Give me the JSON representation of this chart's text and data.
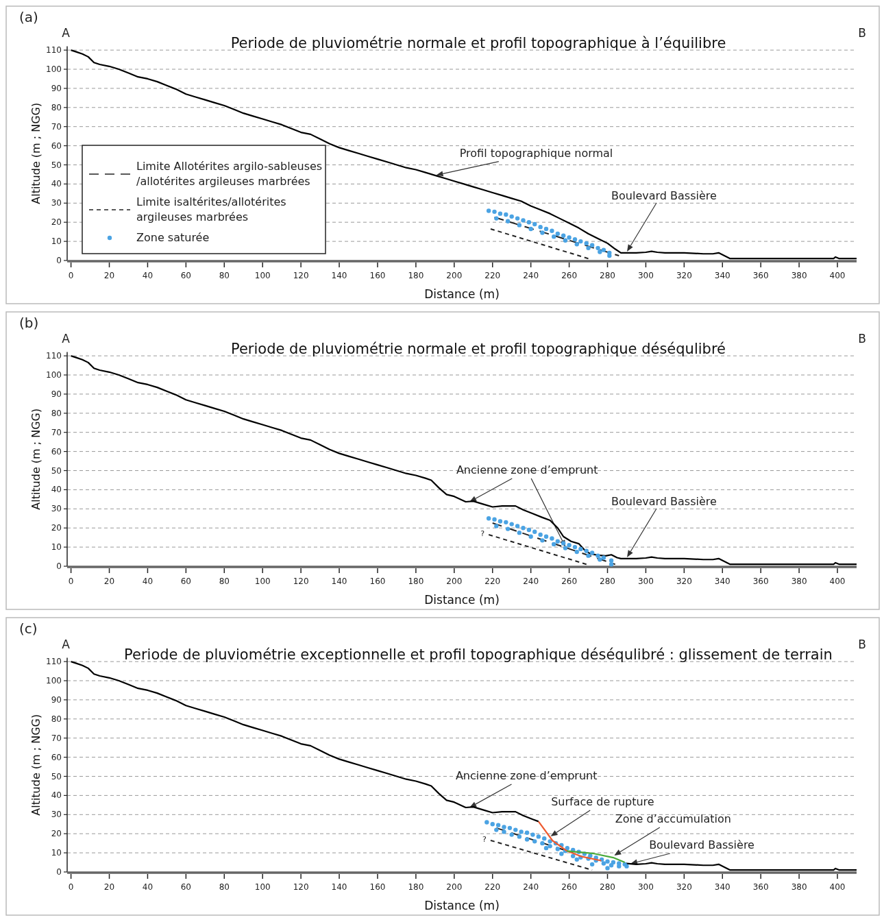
{
  "chart_data": [
    {
      "type": "line",
      "title": "Periode de pluviométrie normale et profil topographique à l’équilibre",
      "xlabel": "Distance (m)",
      "ylabel": "Altitude (m ; NGG)",
      "xlim": [
        -2,
        410
      ],
      "ylim": [
        0,
        112
      ],
      "xticks": [
        0,
        20,
        40,
        60,
        80,
        100,
        120,
        140,
        160,
        180,
        200,
        220,
        240,
        260,
        280,
        300,
        320,
        340,
        360,
        380,
        400
      ],
      "yticks": [
        0,
        10,
        20,
        30,
        40,
        50,
        60,
        70,
        80,
        90,
        100,
        110
      ],
      "grid": "y",
      "legend": "bottom left",
      "annotations": [
        "(a)",
        "A",
        "B",
        {
          "text": "Profil topographique normal",
          "x": 190.6,
          "y": 44.6
        },
        "Boulevard Bassière"
      ],
      "series": [
        {
          "color": "#000000",
          "line_style": "solid",
          "x": [
            0,
            3,
            6,
            9,
            12,
            15,
            20,
            25,
            30,
            35,
            40,
            45,
            50,
            55,
            60,
            65,
            70,
            75,
            80,
            85,
            90,
            95,
            100,
            105,
            110,
            115,
            120,
            125,
            130,
            135,
            140,
            145,
            150,
            155,
            160,
            165,
            170,
            175,
            180,
            185,
            190,
            195,
            200,
            205,
            210,
            215,
            220,
            225,
            230,
            235,
            240,
            245,
            250,
            255,
            260,
            265,
            270,
            275,
            280,
            284,
            287,
            295,
            300,
            303,
            306,
            310,
            320,
            330,
            335,
            338,
            341,
            344,
            360,
            380,
            398,
            399,
            401,
            410
          ],
          "values": [
            110,
            109,
            108,
            106.5,
            103.5,
            102.5,
            101.5,
            100,
            98,
            96,
            95,
            93.5,
            91.5,
            89.5,
            87,
            85.5,
            84,
            82.5,
            81,
            79,
            77,
            75.5,
            74,
            72.5,
            71,
            69,
            67,
            66,
            63.5,
            61,
            59,
            57.5,
            56,
            54.5,
            53,
            51.5,
            50,
            48.5,
            47.5,
            46,
            44.5,
            43,
            41.5,
            40,
            38.5,
            37,
            35.5,
            34,
            32.5,
            31,
            28.5,
            26.5,
            24.5,
            22,
            19.5,
            17,
            14,
            11.5,
            9,
            6,
            4,
            4,
            4.3,
            4.8,
            4.3,
            4,
            4,
            3.5,
            3.5,
            4,
            2.5,
            1,
            1,
            1,
            1,
            1.8,
            1,
            1
          ]
        },
        {
          "name": "Limite Allotérites argilo-sableuses\n/allotérites argileuses marbrées",
          "color": "#222222",
          "line_style": "dashed",
          "x": [
            221,
            286
          ],
          "values": [
            22.6,
            2.5
          ]
        },
        {
          "name": "Limite isaltérites/allotérites\nargileuses marbrées",
          "color": "#222222",
          "line_style": "dashed",
          "x": [
            219,
            270
          ],
          "values": [
            16.5,
            1
          ]
        },
        {
          "type": "scatter",
          "name": "Zone saturée",
          "color": "#4ba3e3",
          "marker": "circle",
          "x": [
            218,
            221,
            224,
            227,
            230,
            233,
            236,
            239,
            242,
            245,
            248,
            251,
            254,
            257,
            260,
            263,
            266,
            269,
            272,
            275,
            278,
            281,
            222,
            228,
            234,
            240,
            246,
            252,
            258,
            264,
            270,
            276,
            281
          ],
          "values": [
            26,
            25.5,
            24.5,
            24,
            23,
            22,
            21,
            20,
            19,
            17.5,
            16.5,
            15.5,
            14,
            13,
            12,
            11,
            10,
            9,
            8,
            6.5,
            5.5,
            4,
            22,
            20.5,
            18.5,
            16.5,
            14.5,
            12.5,
            10.5,
            8.5,
            6.5,
            4.5,
            2.5
          ]
        }
      ]
    },
    {
      "type": "line",
      "title": "Periode de pluviométrie normale et profil topographique déséqulibré",
      "xlabel": "Distance (m)",
      "ylabel": "Altitude (m ; NGG)",
      "xlim": [
        -2,
        410
      ],
      "ylim": [
        0,
        112
      ],
      "xticks": [
        0,
        20,
        40,
        60,
        80,
        100,
        120,
        140,
        160,
        180,
        200,
        220,
        240,
        260,
        280,
        300,
        320,
        340,
        360,
        380,
        400
      ],
      "yticks": [
        0,
        10,
        20,
        30,
        40,
        50,
        60,
        70,
        80,
        90,
        100,
        110
      ],
      "grid": "y",
      "annotations": [
        "(b)",
        "A",
        "B",
        {
          "text": "Ancienne zone d’emprunt",
          "x": 208,
          "y": 33.7
        },
        "Boulevard Bassière",
        "?"
      ],
      "series": [
        {
          "color": "#000000",
          "line_style": "solid",
          "x": [
            0,
            3,
            6,
            9,
            12,
            15,
            20,
            25,
            30,
            35,
            40,
            45,
            50,
            55,
            60,
            65,
            70,
            75,
            80,
            85,
            90,
            95,
            100,
            105,
            110,
            115,
            120,
            125,
            130,
            135,
            140,
            145,
            150,
            155,
            160,
            165,
            170,
            175,
            180,
            185,
            188,
            192,
            196,
            200,
            206,
            210,
            215,
            220,
            225,
            232,
            236,
            241,
            246,
            250,
            254,
            257,
            261,
            265,
            268,
            271,
            275,
            279,
            282,
            285,
            287,
            295,
            300,
            303,
            306,
            310,
            320,
            330,
            335,
            338,
            341,
            344,
            360,
            380,
            398,
            399,
            401,
            410
          ],
          "values": [
            110,
            109,
            108,
            106.5,
            103.5,
            102.5,
            101.5,
            100,
            98,
            96,
            95,
            93.5,
            91.5,
            89.5,
            87,
            85.5,
            84,
            82.5,
            81,
            79,
            77,
            75.5,
            74,
            72.5,
            71,
            69,
            67,
            66,
            63.5,
            61,
            59,
            57.5,
            56,
            54.5,
            53,
            51.5,
            50,
            48.5,
            47.5,
            46,
            45,
            41,
            37.5,
            36.5,
            33.7,
            34,
            32.5,
            31,
            31.5,
            31.5,
            29.5,
            27.5,
            25.5,
            24,
            20,
            15.5,
            13,
            11.8,
            8.5,
            6.5,
            5.8,
            5.4,
            6,
            4.5,
            4,
            4,
            4.3,
            4.8,
            4.3,
            4,
            4,
            3.5,
            3.5,
            4,
            2.5,
            1,
            1,
            1,
            1,
            1.8,
            1,
            1
          ]
        },
        {
          "color": "#222222",
          "line_style": "dashed",
          "x": [
            220,
            284
          ],
          "values": [
            22.6,
            1
          ]
        },
        {
          "color": "#222222",
          "line_style": "dashed",
          "x": [
            218,
            269
          ],
          "values": [
            16.5,
            1
          ]
        },
        {
          "type": "scatter",
          "color": "#4ba3e3",
          "marker": "circle",
          "x": [
            218,
            221,
            224,
            227,
            230,
            233,
            236,
            239,
            242,
            245,
            248,
            251,
            254,
            257,
            260,
            263,
            266,
            269,
            272,
            275,
            278,
            282,
            222,
            228,
            234,
            240,
            246,
            252,
            258,
            264,
            270,
            276,
            282
          ],
          "values": [
            25,
            24.5,
            23.5,
            23,
            22,
            21,
            20,
            19,
            18,
            16.5,
            15.5,
            14.5,
            13,
            12,
            11,
            10,
            9,
            8,
            7,
            5.5,
            4.5,
            3,
            21,
            19.5,
            17.5,
            15.5,
            13.5,
            11.5,
            9.5,
            7.5,
            5.5,
            3.5,
            1
          ]
        }
      ]
    },
    {
      "type": "line",
      "title": "Periode de pluviométrie exceptionnelle et profil topographique déséqulibré : glissement de terrain",
      "xlabel": "Distance (m)",
      "ylabel": "Altitude (m ; NGG)",
      "xlim": [
        -2,
        410
      ],
      "ylim": [
        0,
        112
      ],
      "xticks": [
        0,
        20,
        40,
        60,
        80,
        100,
        120,
        140,
        160,
        180,
        200,
        220,
        240,
        260,
        280,
        300,
        320,
        340,
        360,
        380,
        400
      ],
      "yticks": [
        0,
        10,
        20,
        30,
        40,
        50,
        60,
        70,
        80,
        90,
        100,
        110
      ],
      "grid": "y",
      "annotations": [
        "(c)",
        "A",
        "B",
        {
          "text": "Ancienne zone d’emprunt",
          "x": 208,
          "y": 33.7
        },
        {
          "text": "Surface de rupture",
          "x": 250.3,
          "y": 18.6
        },
        {
          "text": "Zone d’accumulation",
          "x": 283.5,
          "y": 8.6
        },
        {
          "text": "Boulevard Bassière",
          "x": 292,
          "y": 4.3
        },
        "?"
      ],
      "series": [
        {
          "color": "#000000",
          "line_style": "solid",
          "x": [
            0,
            3,
            6,
            9,
            12,
            15,
            20,
            25,
            30,
            35,
            40,
            45,
            50,
            55,
            60,
            65,
            70,
            75,
            80,
            85,
            90,
            95,
            100,
            105,
            110,
            115,
            120,
            125,
            130,
            135,
            140,
            145,
            150,
            155,
            160,
            165,
            170,
            175,
            180,
            185,
            188,
            192,
            196,
            200,
            206,
            210,
            215,
            220,
            225,
            232,
            236,
            241,
            244
          ],
          "values": [
            110,
            109,
            108,
            106.5,
            103.5,
            102.5,
            101.5,
            100,
            98,
            96,
            95,
            93.5,
            91.5,
            89.5,
            87,
            85.5,
            84,
            82.5,
            81,
            79,
            77,
            75.5,
            74,
            72.5,
            71,
            69,
            67,
            66,
            63.5,
            61,
            59,
            57.5,
            56,
            54.5,
            53,
            51.5,
            50,
            48.5,
            47.5,
            46,
            45,
            41,
            37.5,
            36.5,
            33.7,
            34,
            32.5,
            31,
            31.5,
            31.5,
            29.5,
            27.5,
            26.4
          ]
        },
        {
          "color": "#000000",
          "line_style": "solid",
          "x": [
            289,
            295,
            300,
            303,
            306,
            310,
            320,
            330,
            335,
            338,
            341,
            344,
            360,
            380,
            398,
            399,
            401,
            410
          ],
          "values": [
            4.5,
            4,
            4.3,
            4.8,
            4.3,
            4,
            4,
            3.5,
            3.5,
            4,
            2.5,
            1,
            1,
            1,
            1,
            1.8,
            1,
            1
          ]
        },
        {
          "color": "#222222",
          "line_style": "dashed",
          "x": [
            222,
            262
          ],
          "values": [
            23,
            10
          ]
        },
        {
          "color": "#222222",
          "line_style": "dashed",
          "x": [
            219,
            272
          ],
          "values": [
            16.5,
            1
          ]
        },
        {
          "type": "scatter",
          "color": "#4ba3e3",
          "marker": "circle",
          "x": [
            217,
            220,
            223,
            226,
            229,
            232,
            235,
            238,
            241,
            244,
            247,
            250,
            253,
            256,
            259,
            262,
            265,
            268,
            271,
            274,
            277,
            280,
            283,
            286,
            289,
            222,
            226,
            230,
            234,
            238,
            242,
            246,
            250,
            254,
            258,
            262,
            266,
            270,
            274,
            278,
            282,
            286,
            290,
            248,
            256,
            264,
            272,
            280
          ],
          "values": [
            26,
            25,
            24.5,
            23.5,
            23,
            22,
            21,
            20.5,
            19.5,
            18.5,
            17.5,
            16,
            15,
            14,
            12.5,
            11.5,
            10.5,
            9.5,
            8.5,
            7.5,
            6.5,
            5.5,
            5,
            4.5,
            4,
            22,
            21,
            19.5,
            18.5,
            17,
            16,
            15,
            13.5,
            12,
            11,
            8.3,
            7.6,
            7,
            6,
            4.5,
            3.5,
            3,
            3,
            12.5,
            9.5,
            6.5,
            4,
            2
          ]
        },
        {
          "color": "#ee5a2f",
          "line_style": "solid",
          "x": [
            244,
            251.3,
            258.8,
            266.7,
            276.7
          ],
          "values": [
            26.4,
            16.4,
            11,
            8,
            5.9
          ]
        },
        {
          "color": "#4aaa3a",
          "line_style": "solid",
          "x": [
            258.8,
            273,
            283,
            289
          ],
          "values": [
            11,
            9.6,
            7.5,
            5
          ]
        }
      ]
    }
  ]
}
